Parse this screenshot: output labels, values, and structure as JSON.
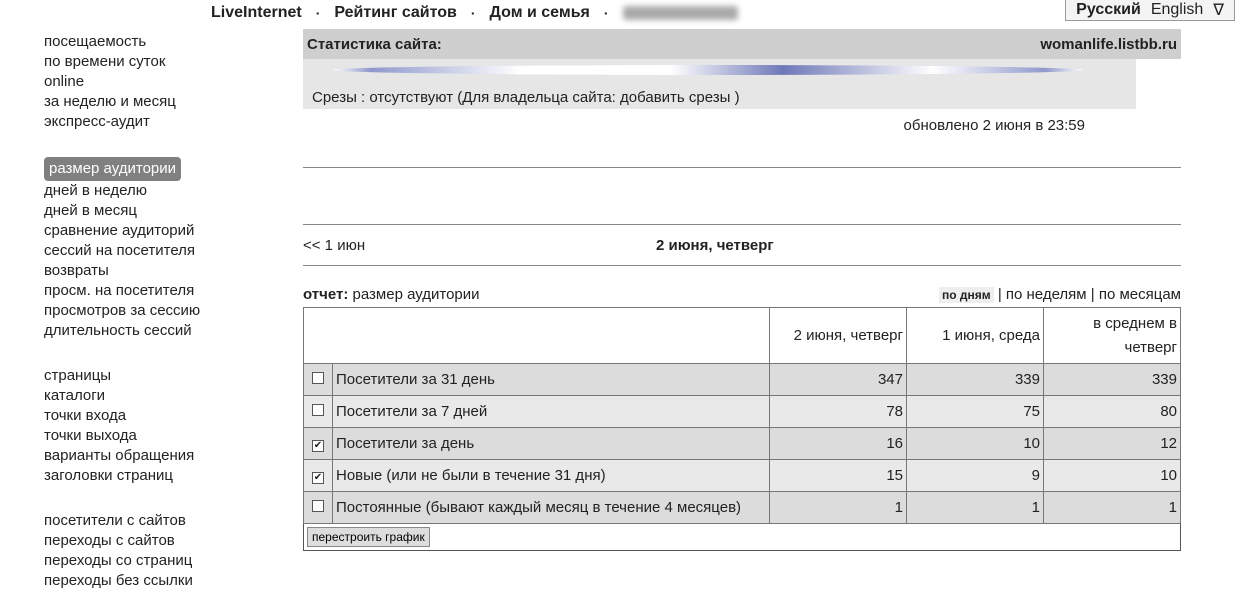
{
  "topnav": {
    "items": [
      "LiveInternet",
      "Рейтинг сайтов",
      "Дом и семья"
    ],
    "separator": "·"
  },
  "lang": {
    "ru": "Русский",
    "en": "English",
    "toggle": "∇"
  },
  "sidebar": {
    "groups": [
      [
        "посещаемость",
        "по времени суток",
        "online",
        "за неделю и месяц",
        "экспресс-аудит"
      ],
      [
        "размер аудитории",
        "дней в неделю",
        "дней в месяц",
        "сравнение аудиторий",
        "сессий на посетителя",
        "возвраты",
        "просм. на посетителя",
        "просмотров за сессию",
        "длительность сессий"
      ],
      [
        "страницы",
        "каталоги",
        "точки входа",
        "точки выхода",
        "варианты обращения",
        "заголовки страниц"
      ],
      [
        "посетители с сайтов",
        "переходы с сайтов",
        "переходы со страниц",
        "переходы без ссылки"
      ]
    ],
    "selected": "размер аудитории"
  },
  "header": {
    "title": "Статистика сайта:",
    "site": "womanlife.listbb.ru"
  },
  "srezy": {
    "prefix": "Срезы : отсутствуют (Для владельца сайта: ",
    "link": "добавить срезы",
    "suffix": " )"
  },
  "updated": "обновлено 2 июня в 23:59",
  "datenav": {
    "prev": "<< 1 июн",
    "current": "2 июня, четверг"
  },
  "report": {
    "label": "отчет:",
    "name": "размер аудитории",
    "periods": [
      "по дням",
      "по неделям",
      "по месяцам"
    ],
    "active": "по дням"
  },
  "table": {
    "columns": [
      "2 июня, четверг",
      "1 июня, среда",
      "в среднем в четверг"
    ],
    "rows": [
      {
        "label": "Посетители за 31 день",
        "checked": false,
        "values": [
          "347",
          "339",
          "339"
        ]
      },
      {
        "label": "Посетители за 7 дней",
        "checked": false,
        "values": [
          "78",
          "75",
          "80"
        ]
      },
      {
        "label": "Посетители за день",
        "checked": true,
        "values": [
          "16",
          "10",
          "12"
        ]
      },
      {
        "label": "Новые (или не были в течение 31 дня)",
        "checked": true,
        "values": [
          "15",
          "9",
          "10"
        ]
      },
      {
        "label": "Постоянные (бывают каждый месяц в течение 4 месяцев)",
        "checked": false,
        "values": [
          "1",
          "1",
          "1"
        ]
      }
    ]
  },
  "rebuild_button": "перестроить график"
}
